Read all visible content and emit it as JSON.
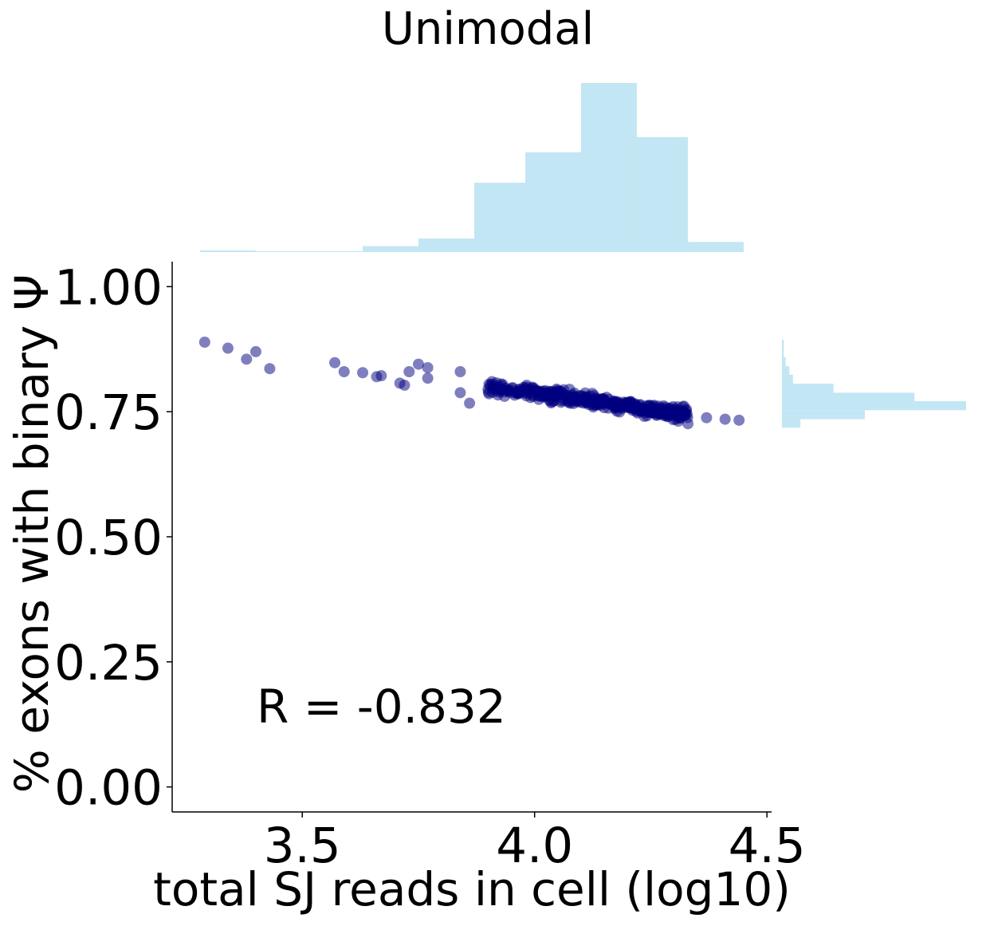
{
  "chart_data": {
    "type": "scatter",
    "title": "Unimodal",
    "xlabel": "total SJ reads in cell (log10)",
    "ylabel": "% exons with binary Ψ",
    "annotation": "R = -0.832",
    "xlim": [
      3.22,
      4.51
    ],
    "ylim": [
      -0.05,
      1.05
    ],
    "xticks": [
      3.5,
      4.0,
      4.5
    ],
    "xtick_labels": [
      "3.5",
      "4.0",
      "4.5"
    ],
    "yticks": [
      0.0,
      0.25,
      0.5,
      0.75,
      1.0
    ],
    "ytick_labels": [
      "0.00",
      "0.25",
      "0.50",
      "0.75",
      "1.00"
    ],
    "grid": false,
    "colors": {
      "points": "#00007f",
      "hist": "#c3e6f4"
    },
    "point_alpha": 0.5,
    "sparse_points": [
      [
        3.29,
        0.889
      ],
      [
        3.34,
        0.877
      ],
      [
        3.38,
        0.855
      ],
      [
        3.4,
        0.87
      ],
      [
        3.43,
        0.836
      ],
      [
        3.57,
        0.848
      ],
      [
        3.59,
        0.83
      ],
      [
        3.63,
        0.828
      ],
      [
        3.66,
        0.82
      ],
      [
        3.67,
        0.822
      ],
      [
        3.71,
        0.807
      ],
      [
        3.72,
        0.803
      ],
      [
        3.73,
        0.83
      ],
      [
        3.75,
        0.845
      ],
      [
        3.77,
        0.838
      ],
      [
        3.77,
        0.817
      ],
      [
        3.84,
        0.83
      ],
      [
        3.84,
        0.788
      ],
      [
        3.86,
        0.767
      ],
      [
        4.37,
        0.738
      ],
      [
        4.41,
        0.735
      ],
      [
        4.44,
        0.733
      ],
      [
        4.33,
        0.726
      ]
    ],
    "dense_cluster": {
      "x_range": [
        3.86,
        4.33
      ],
      "y_at_x_start": 0.805,
      "y_at_x_end": 0.745,
      "y_spread": 0.011,
      "count": 380
    },
    "x_hist": {
      "bin_edges": [
        3.28,
        3.4,
        3.52,
        3.63,
        3.75,
        3.87,
        3.98,
        4.1,
        4.22,
        4.33,
        4.45
      ],
      "counts": [
        1,
        0.5,
        0.5,
        3.5,
        8,
        41,
        59,
        100,
        68,
        6
      ]
    },
    "y_hist": {
      "bin_edges": [
        0.718,
        0.735,
        0.753,
        0.771,
        0.788,
        0.806,
        0.824,
        0.841,
        0.859,
        0.876,
        0.894
      ],
      "counts": [
        10,
        45,
        100,
        72,
        28,
        6,
        4,
        2,
        1,
        1
      ]
    }
  }
}
